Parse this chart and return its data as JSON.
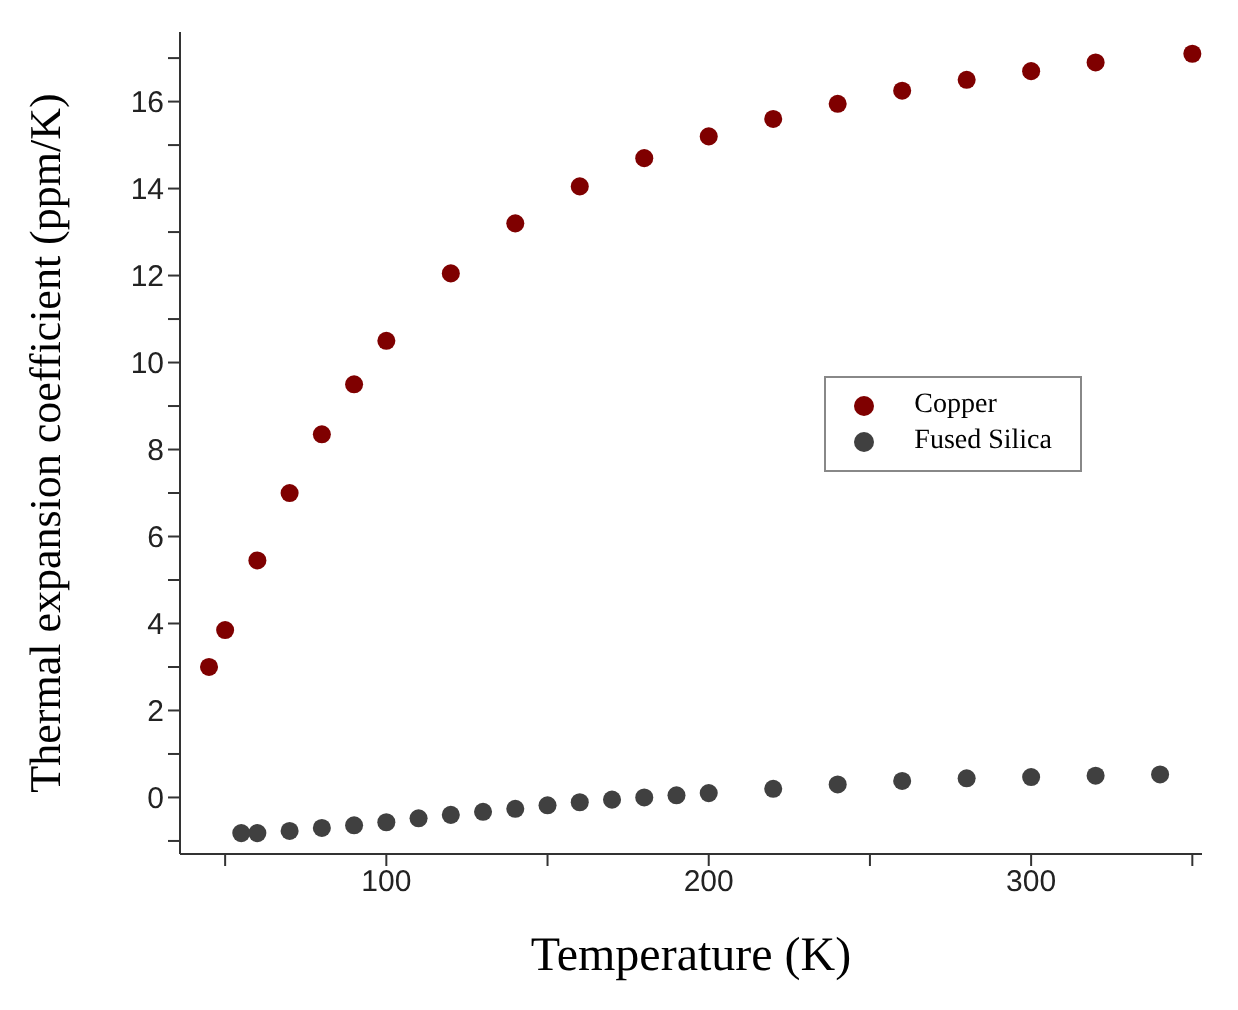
{
  "chart_data": {
    "type": "scatter",
    "xlabel": "Temperature (K)",
    "ylabel": "Thermal expansion coefficient (ppm/K)",
    "xlim": [
      36,
      353
    ],
    "ylim": [
      -1.3,
      17.6
    ],
    "xticks": [
      {
        "value": 50,
        "label": null
      },
      100,
      {
        "value": 150,
        "label": null
      },
      200,
      {
        "value": 250,
        "label": null
      },
      300,
      {
        "value": 350,
        "label": null
      }
    ],
    "yticks": [
      {
        "value": -1,
        "label": null
      },
      0,
      {
        "value": 1,
        "label": null
      },
      2,
      {
        "value": 3,
        "label": null
      },
      4,
      {
        "value": 5,
        "label": null
      },
      6,
      {
        "value": 7,
        "label": null
      },
      8,
      {
        "value": 9,
        "label": null
      },
      10,
      {
        "value": 11,
        "label": null
      },
      12,
      {
        "value": 13,
        "label": null
      },
      14,
      {
        "value": 15,
        "label": null
      },
      16,
      {
        "value": 17,
        "label": null
      }
    ],
    "grid": false,
    "legend": "right",
    "marker": "circle",
    "series": [
      {
        "name": "Copper",
        "color": "#7f0000",
        "x": [
          45,
          50,
          60,
          70,
          80,
          90,
          100,
          120,
          140,
          160,
          180,
          200,
          220,
          240,
          260,
          280,
          300,
          320,
          350
        ],
        "values": [
          3.0,
          3.85,
          5.45,
          7.0,
          8.35,
          9.5,
          10.5,
          12.05,
          13.2,
          14.05,
          14.7,
          15.2,
          15.6,
          15.95,
          16.25,
          16.5,
          16.7,
          16.9,
          17.1
        ]
      },
      {
        "name": "Fused Silica",
        "color": "#404040",
        "x": [
          55,
          60,
          70,
          80,
          90,
          100,
          110,
          120,
          130,
          140,
          150,
          160,
          170,
          180,
          190,
          200,
          220,
          240,
          260,
          280,
          300,
          320,
          340
        ],
        "values": [
          -0.82,
          -0.82,
          -0.77,
          -0.7,
          -0.64,
          -0.57,
          -0.48,
          -0.4,
          -0.33,
          -0.26,
          -0.18,
          -0.11,
          -0.05,
          0.0,
          0.05,
          0.1,
          0.2,
          0.3,
          0.38,
          0.44,
          0.47,
          0.5,
          0.53
        ]
      }
    ]
  }
}
